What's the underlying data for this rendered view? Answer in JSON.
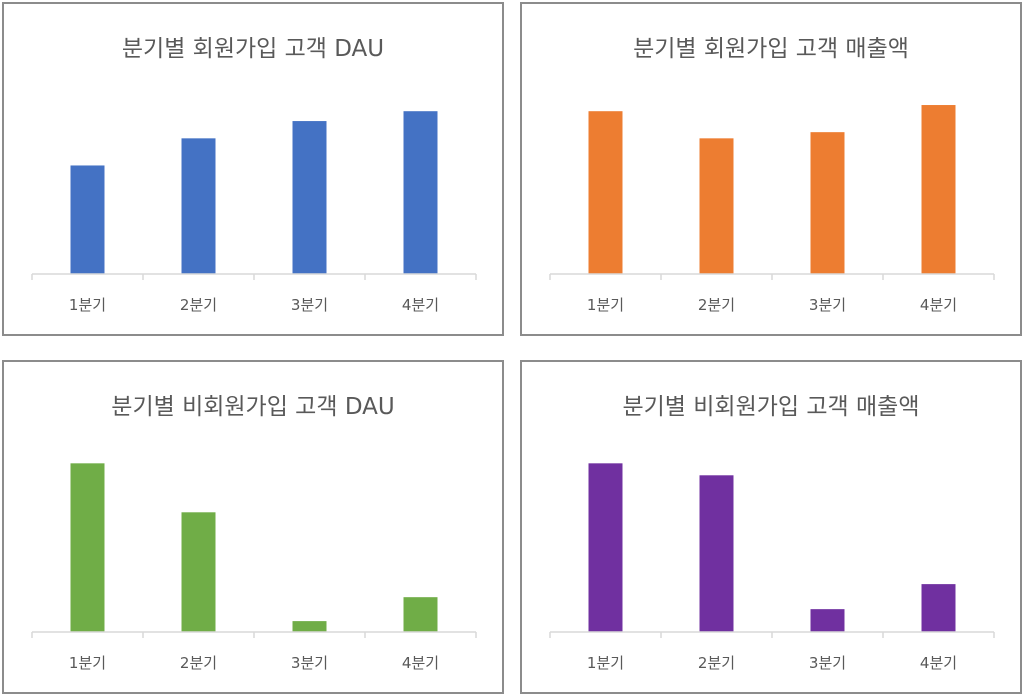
{
  "chart_data": [
    {
      "type": "bar",
      "title": "분기별 회원가입 고객 DAU",
      "categories": [
        "1분기",
        "2분기",
        "3분기",
        "4분기"
      ],
      "values": [
        88,
        110,
        124,
        132
      ],
      "color": "#4472c4",
      "ylim": [
        0,
        150
      ],
      "grid": false,
      "legend": "none"
    },
    {
      "type": "bar",
      "title": "분기별 회원가입 고객 매출액",
      "categories": [
        "1분기",
        "2분기",
        "3분기",
        "4분기"
      ],
      "values": [
        132,
        110,
        115,
        137
      ],
      "color": "#ed7d31",
      "ylim": [
        0,
        150
      ],
      "grid": false,
      "legend": "none"
    },
    {
      "type": "bar",
      "title": "분기별 비회원가입 고객 DAU",
      "categories": [
        "1분기",
        "2분기",
        "3분기",
        "4분기"
      ],
      "values": [
        155,
        110,
        10,
        32
      ],
      "color": "#70ad47",
      "ylim": [
        0,
        170
      ],
      "grid": false,
      "legend": "none"
    },
    {
      "type": "bar",
      "title": "분기별 비회원가입 고객 매출액",
      "categories": [
        "1분기",
        "2분기",
        "3분기",
        "4분기"
      ],
      "values": [
        155,
        144,
        21,
        44
      ],
      "color": "#7030a0",
      "ylim": [
        0,
        170
      ],
      "grid": false,
      "legend": "none"
    }
  ]
}
